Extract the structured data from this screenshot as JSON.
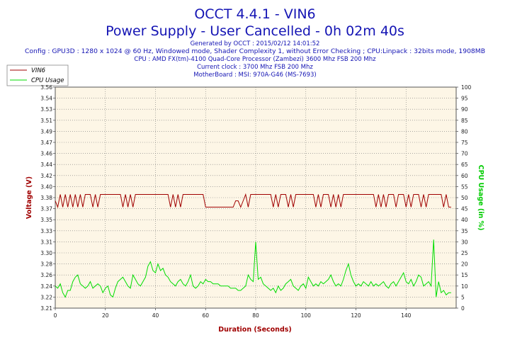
{
  "chart_data": {
    "type": "line",
    "title": "OCCT 4.4.1 - VIN6",
    "subtitle": "Power Supply - User Cancelled - 0h 02m 40s",
    "info_lines": [
      "Generated by OCCT : 2015/02/12 14:01:52",
      "Config : GPU3D : 1280 x 1024 @ 60 Hz, Windowed mode, Shader Complexity 1, without Error Checking ; CPU:Linpack : 32bits mode, 1908MB",
      "CPU : AMD FX(tm)-4100 Quad-Core Processor (Zambezi) 3600 Mhz FSB 200 Mhz",
      "Current clock : 3700 Mhz FSB 200 Mhz",
      "MotherBoard : MSI: 970A-G46 (MS-7693)"
    ],
    "xlabel": "Duration (Seconds)",
    "ylabel_left": "Voltage (V)",
    "ylabel_right": "CPU Usage (in %)",
    "xlim": [
      0,
      160
    ],
    "xticks": [
      "0",
      "20",
      "40",
      "60",
      "80",
      "100",
      "120",
      "140"
    ],
    "ylim_left": [
      3.21,
      3.56
    ],
    "yticks_left": [
      "3.21",
      "3.22",
      "3.24",
      "3.26",
      "3.28",
      "3.30",
      "3.31",
      "3.33",
      "3.35",
      "3.37",
      "3.38",
      "3.40",
      "3.42",
      "3.44",
      "3.46",
      "3.47",
      "3.49",
      "3.51",
      "3.53",
      "3.54",
      "3.56"
    ],
    "ylim_right": [
      0,
      100
    ],
    "yticks_right": [
      "0",
      "5",
      "10",
      "15",
      "20",
      "25",
      "30",
      "35",
      "40",
      "45",
      "50",
      "55",
      "60",
      "65",
      "70",
      "75",
      "80",
      "85",
      "90",
      "95",
      "100"
    ],
    "grid": true,
    "legend_position": "top-left",
    "colors": {
      "title": "#1414b4",
      "info": "#1414b4",
      "vin6": "#a00000",
      "cpu": "#00dd00",
      "plot_bg": "#fdf6e6",
      "axis_label": "#a00000",
      "right_label": "#00cc00",
      "grid": "#777777"
    },
    "series": [
      {
        "name": "VIN6",
        "axis": "left",
        "x": [
          0,
          1,
          2,
          3,
          4,
          5,
          6,
          7,
          8,
          9,
          10,
          11,
          12,
          13,
          14,
          15,
          16,
          17,
          18,
          19,
          20,
          21,
          22,
          23,
          24,
          25,
          26,
          27,
          28,
          29,
          30,
          31,
          32,
          33,
          34,
          35,
          36,
          37,
          38,
          39,
          40,
          41,
          42,
          43,
          44,
          45,
          46,
          47,
          48,
          49,
          50,
          51,
          52,
          53,
          54,
          55,
          56,
          57,
          58,
          59,
          60,
          61,
          62,
          63,
          64,
          65,
          66,
          67,
          68,
          69,
          70,
          71,
          72,
          73,
          74,
          75,
          76,
          77,
          78,
          79,
          80,
          81,
          82,
          83,
          84,
          85,
          86,
          87,
          88,
          89,
          90,
          91,
          92,
          93,
          94,
          95,
          96,
          97,
          98,
          99,
          100,
          101,
          102,
          103,
          104,
          105,
          106,
          107,
          108,
          109,
          110,
          111,
          112,
          113,
          114,
          115,
          116,
          117,
          118,
          119,
          120,
          121,
          122,
          123,
          124,
          125,
          126,
          127,
          128,
          129,
          130,
          131,
          132,
          133,
          134,
          135,
          136,
          137,
          138,
          139,
          140,
          141,
          142,
          143,
          144,
          145,
          146,
          147,
          148,
          149,
          150,
          151,
          152,
          153,
          154,
          155,
          156,
          157,
          158
        ],
        "values": [
          3.38,
          3.37,
          3.39,
          3.37,
          3.39,
          3.37,
          3.39,
          3.37,
          3.39,
          3.37,
          3.39,
          3.37,
          3.39,
          3.39,
          3.39,
          3.37,
          3.39,
          3.37,
          3.39,
          3.39,
          3.39,
          3.39,
          3.39,
          3.39,
          3.39,
          3.39,
          3.39,
          3.37,
          3.39,
          3.37,
          3.39,
          3.37,
          3.39,
          3.39,
          3.39,
          3.39,
          3.39,
          3.39,
          3.39,
          3.39,
          3.39,
          3.39,
          3.39,
          3.39,
          3.39,
          3.39,
          3.37,
          3.39,
          3.37,
          3.39,
          3.37,
          3.39,
          3.39,
          3.39,
          3.39,
          3.39,
          3.39,
          3.39,
          3.39,
          3.39,
          3.37,
          3.37,
          3.37,
          3.37,
          3.37,
          3.37,
          3.37,
          3.37,
          3.37,
          3.37,
          3.37,
          3.37,
          3.38,
          3.38,
          3.37,
          3.38,
          3.39,
          3.37,
          3.39,
          3.39,
          3.39,
          3.39,
          3.39,
          3.39,
          3.39,
          3.39,
          3.39,
          3.37,
          3.39,
          3.37,
          3.39,
          3.39,
          3.39,
          3.37,
          3.39,
          3.37,
          3.39,
          3.39,
          3.39,
          3.39,
          3.39,
          3.39,
          3.39,
          3.39,
          3.37,
          3.39,
          3.37,
          3.39,
          3.39,
          3.39,
          3.37,
          3.39,
          3.37,
          3.39,
          3.37,
          3.39,
          3.39,
          3.39,
          3.39,
          3.39,
          3.39,
          3.39,
          3.39,
          3.39,
          3.39,
          3.39,
          3.39,
          3.39,
          3.37,
          3.39,
          3.37,
          3.39,
          3.37,
          3.39,
          3.39,
          3.39,
          3.37,
          3.39,
          3.39,
          3.39,
          3.37,
          3.39,
          3.37,
          3.39,
          3.39,
          3.39,
          3.37,
          3.39,
          3.37,
          3.39,
          3.39,
          3.39,
          3.39,
          3.39,
          3.39,
          3.37,
          3.39,
          3.37,
          3.37
        ]
      },
      {
        "name": "CPU Usage",
        "axis": "right",
        "x": [
          0,
          1,
          2,
          3,
          4,
          5,
          6,
          7,
          8,
          9,
          10,
          11,
          12,
          13,
          14,
          15,
          16,
          17,
          18,
          19,
          20,
          21,
          22,
          23,
          24,
          25,
          26,
          27,
          28,
          29,
          30,
          31,
          32,
          33,
          34,
          35,
          36,
          37,
          38,
          39,
          40,
          41,
          42,
          43,
          44,
          45,
          46,
          47,
          48,
          49,
          50,
          51,
          52,
          53,
          54,
          55,
          56,
          57,
          58,
          59,
          60,
          61,
          62,
          63,
          64,
          65,
          66,
          67,
          68,
          69,
          70,
          71,
          72,
          73,
          74,
          75,
          76,
          77,
          78,
          79,
          80,
          81,
          82,
          83,
          84,
          85,
          86,
          87,
          88,
          89,
          90,
          91,
          92,
          93,
          94,
          95,
          96,
          97,
          98,
          99,
          100,
          101,
          102,
          103,
          104,
          105,
          106,
          107,
          108,
          109,
          110,
          111,
          112,
          113,
          114,
          115,
          116,
          117,
          118,
          119,
          120,
          121,
          122,
          123,
          124,
          125,
          126,
          127,
          128,
          129,
          130,
          131,
          132,
          133,
          134,
          135,
          136,
          137,
          138,
          139,
          140,
          141,
          142,
          143,
          144,
          145,
          146,
          147,
          148,
          149,
          150,
          151,
          152,
          153,
          154,
          155,
          156,
          157,
          158
        ],
        "values": [
          10,
          9,
          11,
          7,
          5,
          8,
          8,
          12,
          14,
          15,
          11,
          10,
          9,
          10,
          12,
          9,
          10,
          11,
          10,
          7,
          9,
          10,
          6,
          5,
          9,
          12,
          13,
          14,
          12,
          10,
          9,
          15,
          13,
          11,
          10,
          12,
          14,
          19,
          21,
          17,
          16,
          20,
          17,
          18,
          15,
          14,
          12,
          11,
          10,
          12,
          13,
          11,
          10,
          12,
          15,
          10,
          9,
          10,
          12,
          11,
          13,
          12,
          12,
          11,
          11,
          11,
          10,
          10,
          10,
          10,
          9,
          9,
          9,
          8,
          8,
          9,
          10,
          15,
          13,
          12,
          30,
          13,
          14,
          11,
          10,
          9,
          8,
          9,
          7,
          10,
          8,
          9,
          11,
          12,
          13,
          10,
          9,
          8,
          10,
          11,
          9,
          14,
          12,
          10,
          11,
          10,
          12,
          11,
          12,
          13,
          15,
          12,
          10,
          11,
          10,
          13,
          17,
          20,
          15,
          12,
          10,
          11,
          10,
          12,
          11,
          10,
          12,
          10,
          11,
          10,
          11,
          12,
          10,
          9,
          11,
          12,
          10,
          12,
          14,
          16,
          12,
          11,
          13,
          10,
          12,
          15,
          14,
          10,
          11,
          12,
          10,
          31,
          5,
          12,
          7,
          8,
          6,
          7,
          7
        ]
      }
    ]
  }
}
